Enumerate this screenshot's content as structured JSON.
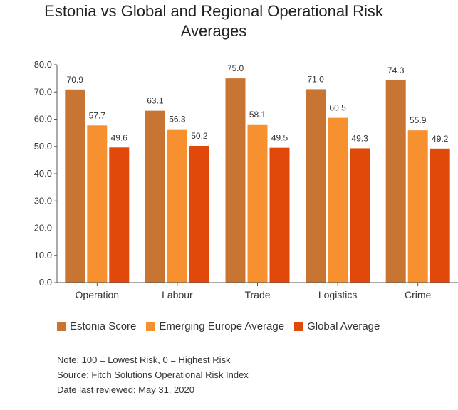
{
  "title_lines": [
    "Estonia vs Global and Regional Operational Risk",
    "Averages"
  ],
  "colors": {
    "estonia": "#c87533",
    "emerging_europe": "#f7902f",
    "global": "#e1490a",
    "axis": "#555555",
    "text": "#333333"
  },
  "legend": [
    {
      "label": "Estonia Score",
      "color": "#c87533"
    },
    {
      "label": "Emerging Europe Average",
      "color": "#f7902f"
    },
    {
      "label": "Global Average",
      "color": "#e1490a"
    }
  ],
  "notes": [
    "Note: 100 = Lowest Risk, 0 = Highest Risk",
    "Source: Fitch Solutions Operational Risk Index",
    "Date last reviewed: May 31, 2020"
  ],
  "chart_data": {
    "type": "bar",
    "title": "Estonia vs Global and Regional Operational Risk Averages",
    "categories": [
      "Operation",
      "Labour",
      "Trade",
      "Logistics",
      "Crime"
    ],
    "series": [
      {
        "name": "Estonia Score",
        "values": [
          70.9,
          63.1,
          75.0,
          71.0,
          74.3
        ],
        "color": "#c87533"
      },
      {
        "name": "Emerging Europe Average",
        "values": [
          57.7,
          56.3,
          58.1,
          60.5,
          55.9
        ],
        "color": "#f7902f"
      },
      {
        "name": "Global Average",
        "values": [
          49.6,
          50.2,
          49.5,
          49.3,
          49.2
        ],
        "color": "#e1490a"
      }
    ],
    "ylim": [
      0,
      80
    ],
    "yticks": [
      0,
      10,
      20,
      30,
      40,
      50,
      60,
      70,
      80
    ],
    "ytick_labels": [
      "0.0",
      "10.0",
      "20.0",
      "30.0",
      "40.0",
      "50.0",
      "60.0",
      "70.0",
      "80.0"
    ],
    "xlabel": "",
    "ylabel": "",
    "grid": false,
    "legend_position": "bottom"
  }
}
